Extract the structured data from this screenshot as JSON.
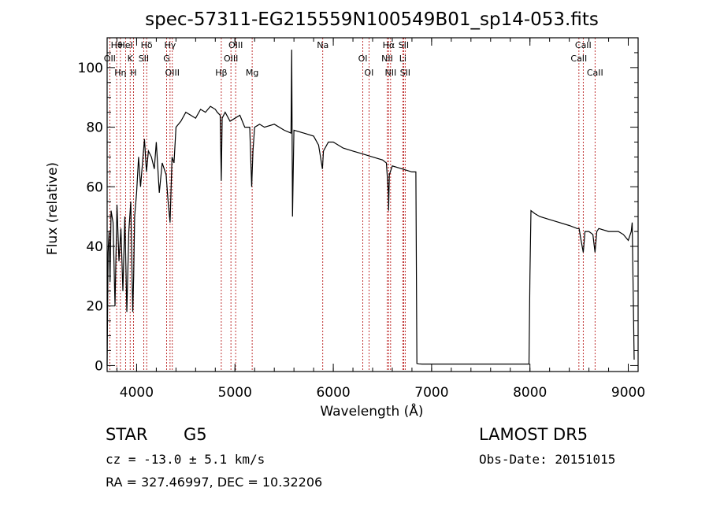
{
  "chart_data": {
    "type": "line",
    "title": "spec-57311-EG215559N100549B01_sp14-053.fits",
    "xlabel": "Wavelength (Å)",
    "ylabel": "Flux (relative)",
    "xlim": [
      3700,
      9100
    ],
    "ylim": [
      -2,
      110
    ],
    "x_ticks": [
      4000,
      5000,
      6000,
      7000,
      8000,
      9000
    ],
    "y_ticks": [
      0,
      20,
      40,
      60,
      80,
      100
    ],
    "grid": false,
    "series": [
      {
        "x": [
          3700,
          3710,
          3720,
          3730,
          3740,
          3760,
          3780,
          3800,
          3820,
          3840,
          3860,
          3880,
          3900,
          3920,
          3940,
          3960,
          3970,
          3980,
          4000,
          4020,
          4040,
          4060,
          4080,
          4100,
          4120,
          4150,
          4180,
          4200,
          4230,
          4260,
          4300,
          4320,
          4340,
          4360,
          4380,
          4400,
          4450,
          4500,
          4550,
          4600,
          4650,
          4700,
          4750,
          4800,
          4820,
          4850,
          4861,
          4870,
          4900,
          4950,
          5000,
          5050,
          5100,
          5150,
          5170,
          5183,
          5200,
          5250,
          5300,
          5400,
          5500,
          5570,
          5577,
          5585,
          5600,
          5700,
          5800,
          5850,
          5890,
          5900,
          5950,
          6000,
          6100,
          6200,
          6300,
          6400,
          6500,
          6540,
          6560,
          6563,
          6570,
          6600,
          6700,
          6800,
          6840,
          6850,
          6870,
          6900,
          7000,
          7200,
          7500,
          7800,
          7990,
          8000,
          8010,
          8050,
          8100,
          8200,
          8300,
          8400,
          8480,
          8500,
          8520,
          8542,
          8560,
          8600,
          8640,
          8662,
          8680,
          8700,
          8800,
          8900,
          8950,
          9000,
          9030,
          9040,
          9060
        ],
        "y": [
          0,
          38,
          45,
          28,
          52,
          48,
          20,
          54,
          35,
          46,
          25,
          50,
          18,
          45,
          55,
          18,
          30,
          50,
          58,
          70,
          60,
          68,
          76,
          65,
          72,
          70,
          66,
          75,
          58,
          68,
          64,
          55,
          48,
          70,
          68,
          80,
          82,
          85,
          84,
          83,
          86,
          85,
          87,
          86,
          85,
          84,
          62,
          83,
          85,
          82,
          83,
          84,
          80,
          80,
          60,
          72,
          80,
          81,
          80,
          81,
          79,
          78,
          106,
          50,
          79,
          78,
          77,
          74,
          66,
          72,
          75,
          75,
          73,
          72,
          71,
          70,
          69,
          68,
          58,
          52,
          64,
          67,
          66,
          65,
          65,
          0.7,
          0.6,
          0.5,
          0.5,
          0.5,
          0.5,
          0.5,
          0.5,
          30,
          52,
          51,
          50,
          49,
          48,
          47,
          46,
          46,
          42,
          38,
          45,
          45,
          44,
          38,
          45,
          46,
          45,
          45,
          44,
          42,
          45,
          48,
          2
        ]
      }
    ],
    "lines": [
      {
        "label": "Hθ",
        "x": 3797
      },
      {
        "label": "OII",
        "x": 3727
      },
      {
        "label": "Hη",
        "x": 3835
      },
      {
        "label": "HeI",
        "x": 3889
      },
      {
        "label": "K",
        "x": 3934
      },
      {
        "label": "H",
        "x": 3968
      },
      {
        "label": "Hδ",
        "x": 4102
      },
      {
        "label": "SII",
        "x": 4072
      },
      {
        "label": "OIII",
        "x": 4363
      },
      {
        "label": "Hγ",
        "x": 4340
      },
      {
        "label": "G",
        "x": 4305
      },
      {
        "label": "Hβ",
        "x": 4861
      },
      {
        "label": "OIII",
        "x": 5007
      },
      {
        "label": "OIII",
        "x": 4959
      },
      {
        "label": "Mg",
        "x": 5175
      },
      {
        "label": "Na",
        "x": 5893
      },
      {
        "label": "OI",
        "x": 6300
      },
      {
        "label": "OI",
        "x": 6363
      },
      {
        "label": "Hα",
        "x": 6563
      },
      {
        "label": "NII",
        "x": 6548
      },
      {
        "label": "NII",
        "x": 6583
      },
      {
        "label": "SII",
        "x": 6716
      },
      {
        "label": "Li",
        "x": 6707
      },
      {
        "label": "SII",
        "x": 6731
      },
      {
        "label": "CaII",
        "x": 8542
      },
      {
        "label": "CaII",
        "x": 8498
      },
      {
        "label": "CaII",
        "x": 8662
      }
    ]
  },
  "info": {
    "class_label": "STAR",
    "subclass_label": "G5",
    "survey": "LAMOST DR5",
    "cz": "cz = -13.0 ± 5.1 km/s",
    "obs_date": "Obs-Date: 20151015",
    "coords": "RA = 327.46997, DEC =  10.32206"
  }
}
